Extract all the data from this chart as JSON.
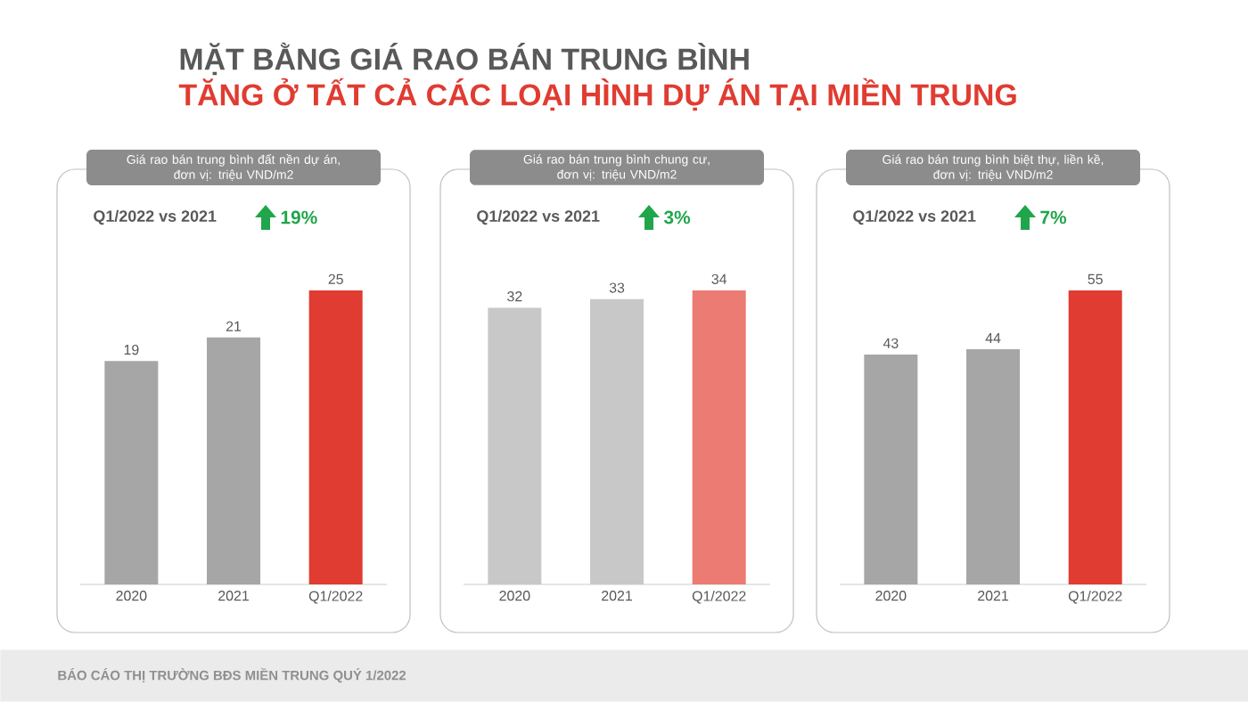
{
  "chart_data": [
    {
      "type": "other",
      "title": "MẶT BẰNG GIÁ RAO BÁN TRUNG BÌNH",
      "subtitle": "TĂNG Ở TẤT CẢ CÁC LOẠI HÌNH DỰ ÁN TẠI MIỀN TRUNG",
      "annotations": [
        "BÁO CÁO THỊ TRƯỜNG BĐS MIỀN TRUNG QUÝ 1/2022"
      ]
    },
    {
      "type": "bar",
      "title": "Giá rao bán trung bình đất nền dự án,",
      "subtitle": "đơn vị: triệu VND/m2",
      "annotations": [
        "Q1/2022 vs 2021",
        "19%"
      ],
      "categories": [
        "2020",
        "2021",
        "Q1/2022"
      ],
      "values": [
        19,
        21,
        25
      ],
      "colors": [
        "#a6a6a6",
        "#a6a6a6",
        "#e03c31"
      ],
      "data_labels": true
    },
    {
      "type": "bar",
      "title": "Giá rao bán trung bình chung cư,",
      "subtitle": "đơn vị: triệu VND/m2",
      "annotations": [
        "Q1/2022 vs 2021",
        "3%"
      ],
      "categories": [
        "2020",
        "2021",
        "Q1/2022"
      ],
      "values": [
        32,
        33,
        34
      ],
      "colors": [
        "#c8c8c8",
        "#c8c8c8",
        "#ec7b73"
      ],
      "data_labels": true
    },
    {
      "type": "bar",
      "title": "Giá rao bán trung bình biệt thự, liền kề,",
      "subtitle": "đơn vị: triệu VND/m2",
      "annotations": [
        "Q1/2022 vs 2021",
        "7%"
      ],
      "categories": [
        "2020",
        "2021",
        "Q1/2022"
      ],
      "values": [
        43,
        44,
        55
      ],
      "colors": [
        "#a6a6a6",
        "#a6a6a6",
        "#e03c31"
      ],
      "data_labels": true
    }
  ]
}
